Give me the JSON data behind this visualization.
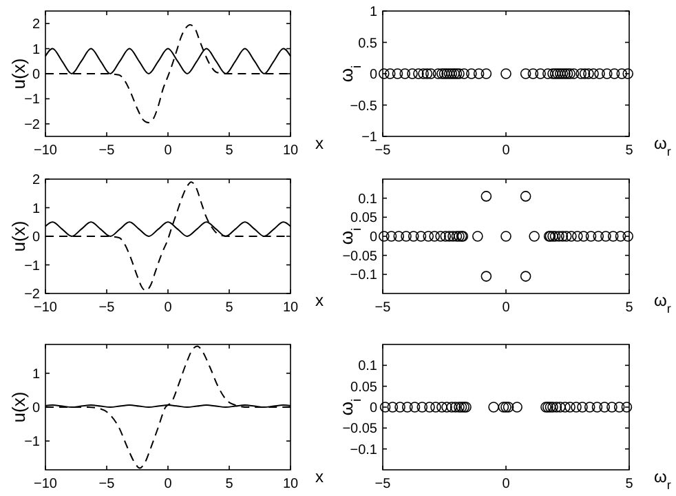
{
  "chart_data": [
    {
      "type": "line",
      "xlabel": "x",
      "ylabel": "u(x)",
      "xlim": [
        -10,
        10
      ],
      "ylim": [
        -2.5,
        2.5
      ],
      "xticks": [
        -10,
        -5,
        0,
        5,
        10
      ],
      "yticks": [
        -2,
        -1,
        0,
        1,
        2
      ],
      "series": [
        {
          "color": "#000000",
          "line_style": "solid",
          "x": [
            -10,
            -9.42,
            -8.64,
            -7.85,
            -7.07,
            -6.28,
            -5.5,
            -4.71,
            -3.93,
            -3.14,
            -2.36,
            -1.57,
            -0.79,
            0,
            0.79,
            1.57,
            2.36,
            3.14,
            3.93,
            4.71,
            5.5,
            6.28,
            7.07,
            7.85,
            8.64,
            9.42,
            10
          ],
          "values": [
            0.7,
            1,
            0.5,
            0,
            0.5,
            1,
            0.5,
            0,
            0.5,
            1,
            0.5,
            0,
            0.5,
            1,
            0.5,
            0,
            0.5,
            1,
            0.5,
            0,
            0.5,
            1,
            0.5,
            0,
            0.5,
            1,
            0.7
          ]
        },
        {
          "color": "#000000",
          "line_style": "dashed",
          "x": [
            -10,
            -5,
            -4,
            -3.5,
            -3,
            -2.5,
            -2,
            -1.6,
            -1.2,
            -0.8,
            -0.4,
            0,
            0.3,
            0.7,
            1.1,
            1.5,
            1.8,
            2.2,
            2.6,
            3,
            3.5,
            4,
            5,
            10
          ],
          "values": [
            0,
            0,
            -0.05,
            -0.3,
            -0.8,
            -1.4,
            -1.85,
            -1.95,
            -1.8,
            -1.3,
            -0.6,
            -0.1,
            0.3,
            0.9,
            1.5,
            1.85,
            1.95,
            1.8,
            1.3,
            0.8,
            0.3,
            0.05,
            0,
            0
          ]
        }
      ]
    },
    {
      "type": "scatter",
      "xlabel": "ω$_{r}$",
      "ylabel": "ω$_{i}$",
      "xlim": [
        -5,
        5
      ],
      "ylim": [
        -1,
        1
      ],
      "xticks": [
        -5,
        0,
        5
      ],
      "yticks": [
        -1,
        -0.5,
        0,
        0.5,
        1
      ],
      "marker": "circle",
      "series": [
        {
          "color": "#000000",
          "x": [
            -4.95,
            -4.7,
            -4.4,
            -4.1,
            -3.8,
            -3.55,
            -3.35,
            -3.2,
            -3.05,
            -2.75,
            -2.6,
            -2.5,
            -2.4,
            -2.3,
            -2.2,
            -2.1,
            -2.0,
            -1.9,
            -1.7,
            -1.4,
            -1.1,
            -0.8,
            0,
            0.8,
            1.1,
            1.4,
            1.7,
            1.9,
            2.0,
            2.1,
            2.2,
            2.3,
            2.4,
            2.5,
            2.6,
            2.75,
            3.05,
            3.2,
            3.35,
            3.55,
            3.8,
            4.1,
            4.4,
            4.7,
            4.95
          ],
          "values": [
            0,
            0,
            0,
            0,
            0,
            0,
            0,
            0,
            0,
            0,
            0,
            0,
            0,
            0,
            0,
            0,
            0,
            0,
            0,
            0,
            0,
            0,
            0,
            0,
            0,
            0,
            0,
            0,
            0,
            0,
            0,
            0,
            0,
            0,
            0,
            0,
            0,
            0,
            0,
            0,
            0,
            0,
            0,
            0,
            0
          ]
        }
      ]
    },
    {
      "type": "line",
      "xlabel": "x",
      "ylabel": "u(x)",
      "xlim": [
        -10,
        10
      ],
      "ylim": [
        -2,
        2
      ],
      "xticks": [
        -10,
        -5,
        0,
        5,
        10
      ],
      "yticks": [
        -2,
        -1,
        0,
        1,
        2
      ],
      "series": [
        {
          "color": "#000000",
          "line_style": "solid",
          "x": [
            -10,
            -9.42,
            -8.64,
            -7.85,
            -7.07,
            -6.28,
            -5.5,
            -4.71,
            -3.93,
            -3.14,
            -2.36,
            -1.57,
            -0.79,
            0,
            0.79,
            1.57,
            2.36,
            3.14,
            3.93,
            4.71,
            5.5,
            6.28,
            7.07,
            7.85,
            8.64,
            9.42,
            10
          ],
          "values": [
            0.35,
            0.5,
            0.25,
            0,
            0.25,
            0.5,
            0.25,
            0,
            0.25,
            0.5,
            0.25,
            0,
            0.25,
            0.5,
            0.25,
            0,
            0.25,
            0.5,
            0.25,
            0,
            0.25,
            0.5,
            0.25,
            0,
            0.25,
            0.5,
            0.35
          ]
        },
        {
          "color": "#000000",
          "line_style": "dashed",
          "x": [
            -10,
            -5,
            -4,
            -3.5,
            -3,
            -2.5,
            -2.1,
            -1.8,
            -1.4,
            -1,
            -0.5,
            0,
            0.3,
            0.7,
            1.1,
            1.5,
            1.9,
            2.3,
            2.7,
            3.1,
            3.6,
            4.2,
            5,
            10
          ],
          "values": [
            0,
            0,
            -0.05,
            -0.3,
            -0.8,
            -1.4,
            -1.8,
            -1.9,
            -1.7,
            -1.2,
            -0.6,
            -0.1,
            0.3,
            0.8,
            1.3,
            1.7,
            1.9,
            1.7,
            1.2,
            0.7,
            0.3,
            0.05,
            0,
            0
          ]
        }
      ]
    },
    {
      "type": "scatter",
      "xlabel": "ω$_{r}$",
      "ylabel": "ω$_{i}$",
      "xlim": [
        -5,
        5
      ],
      "ylim": [
        -0.15,
        0.15
      ],
      "xticks": [
        -5,
        0,
        5
      ],
      "yticks": [
        -0.1,
        -0.05,
        0,
        0.05,
        0.1
      ],
      "marker": "circle",
      "series": [
        {
          "color": "#000000",
          "x": [
            -4.95,
            -4.65,
            -4.35,
            -4.05,
            -3.75,
            -3.45,
            -3.15,
            -2.9,
            -2.65,
            -2.45,
            -2.3,
            -2.15,
            -2.0,
            -1.9,
            -1.8,
            -1.75,
            -1.15,
            0,
            1.15,
            1.75,
            1.8,
            1.9,
            2.0,
            2.15,
            2.3,
            2.45,
            2.65,
            2.9,
            3.15,
            3.45,
            3.75,
            4.05,
            4.35,
            4.65,
            4.95,
            -0.8,
            0.8,
            -0.8,
            0.8
          ],
          "values": [
            0,
            0,
            0,
            0,
            0,
            0,
            0,
            0,
            0,
            0,
            0,
            0,
            0,
            0,
            0,
            0,
            0,
            0,
            0,
            0,
            0,
            0,
            0,
            0,
            0,
            0,
            0,
            0,
            0,
            0,
            0,
            0,
            0,
            0,
            0,
            0.105,
            0.105,
            -0.105,
            -0.105
          ]
        }
      ]
    },
    {
      "type": "line",
      "xlabel": "x",
      "ylabel": "u(x)",
      "xlim": [
        -10,
        10
      ],
      "ylim": [
        -1.85,
        1.85
      ],
      "xticks": [
        -10,
        -5,
        0,
        5,
        10
      ],
      "yticks": [
        -1,
        0,
        1
      ],
      "series": [
        {
          "color": "#000000",
          "line_style": "solid",
          "x": [
            -10,
            -9.42,
            -8.64,
            -7.85,
            -7.07,
            -6.28,
            -5.5,
            -4.71,
            -3.93,
            -3.14,
            -2.36,
            -1.57,
            -0.79,
            0,
            0.79,
            1.57,
            2.36,
            3.14,
            3.93,
            4.71,
            5.5,
            6.28,
            7.07,
            7.85,
            8.64,
            9.42,
            10
          ],
          "values": [
            0.04,
            0.06,
            0.03,
            0,
            0.03,
            0.06,
            0.03,
            0,
            0.03,
            0.06,
            0.03,
            0,
            0.03,
            0.06,
            0.03,
            0,
            0.03,
            0.06,
            0.03,
            0,
            0.03,
            0.06,
            0.03,
            0,
            0.03,
            0.06,
            0.04
          ]
        },
        {
          "color": "#000000",
          "line_style": "dashed",
          "x": [
            -10,
            -6.5,
            -5.5,
            -4.8,
            -4,
            -3.3,
            -2.7,
            -2.3,
            -1.9,
            -1.4,
            -0.8,
            -0.2,
            0.3,
            0.9,
            1.5,
            2,
            2.4,
            2.8,
            3.4,
            4.1,
            4.8,
            5.6,
            6.5,
            10
          ],
          "values": [
            0,
            0,
            -0.05,
            -0.2,
            -0.6,
            -1.2,
            -1.65,
            -1.8,
            -1.65,
            -1.2,
            -0.6,
            0,
            0.15,
            0.7,
            1.3,
            1.7,
            1.8,
            1.65,
            1.2,
            0.6,
            0.2,
            0.05,
            0,
            0
          ]
        }
      ]
    },
    {
      "type": "scatter",
      "xlabel": "ω$_{r}$",
      "ylabel": "ω$_{i}$",
      "xlim": [
        -5,
        5
      ],
      "ylim": [
        -0.15,
        0.15
      ],
      "xticks": [
        -5,
        0,
        5
      ],
      "yticks": [
        -0.1,
        -0.05,
        0,
        0.05,
        0.1
      ],
      "marker": "circle",
      "series": [
        {
          "color": "#000000",
          "x": [
            -4.9,
            -4.6,
            -4.3,
            -4.0,
            -3.7,
            -3.4,
            -3.1,
            -2.85,
            -2.6,
            -2.4,
            -2.2,
            -2.05,
            -1.9,
            -1.8,
            -1.7,
            -1.62,
            -0.5,
            -0.1,
            0,
            0.1,
            0.45,
            1.62,
            1.7,
            1.8,
            1.9,
            2.05,
            2.2,
            2.4,
            2.6,
            2.85,
            3.1,
            3.4,
            3.7,
            4.0,
            4.3,
            4.6,
            4.9
          ],
          "values": [
            0,
            0,
            0,
            0,
            0,
            0,
            0,
            0,
            0,
            0,
            0,
            0,
            0,
            0,
            0,
            0,
            0,
            0,
            0,
            0,
            0,
            0,
            0,
            0,
            0,
            0,
            0,
            0,
            0,
            0,
            0,
            0,
            0,
            0,
            0,
            0,
            0
          ]
        }
      ]
    }
  ]
}
